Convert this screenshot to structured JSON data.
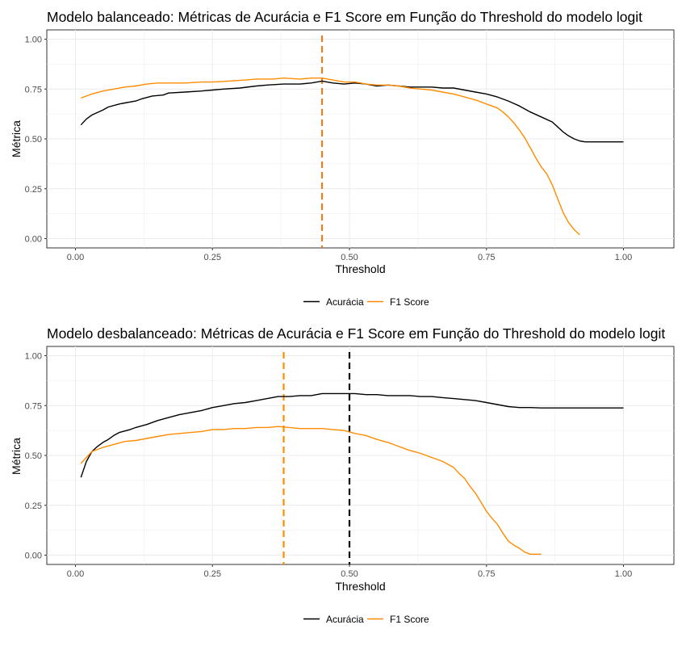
{
  "chart_data": [
    {
      "type": "line",
      "title": "Modelo balanceado: Métricas de Acurácia e F1 Score em Função do Threshold do modelo logit",
      "xlabel": "Threshold",
      "ylabel": "Métrica",
      "xlim": [
        0,
        1
      ],
      "ylim": [
        0,
        1
      ],
      "x_ticks": [
        "0.00",
        "0.25",
        "0.50",
        "0.75",
        "1.00"
      ],
      "y_ticks": [
        "0.00",
        "0.25",
        "0.50",
        "0.75",
        "1.00"
      ],
      "grid": true,
      "legend_position": "bottom",
      "series": [
        {
          "name": "Acurácia",
          "color": "#000000",
          "points": [
            [
              0.01,
              0.57
            ],
            [
              0.02,
              0.6
            ],
            [
              0.03,
              0.62
            ],
            [
              0.05,
              0.645
            ],
            [
              0.06,
              0.66
            ],
            [
              0.08,
              0.675
            ],
            [
              0.09,
              0.68
            ],
            [
              0.11,
              0.69
            ],
            [
              0.12,
              0.7
            ],
            [
              0.14,
              0.715
            ],
            [
              0.16,
              0.72
            ],
            [
              0.17,
              0.73
            ],
            [
              0.2,
              0.735
            ],
            [
              0.23,
              0.74
            ],
            [
              0.25,
              0.745
            ],
            [
              0.27,
              0.75
            ],
            [
              0.3,
              0.755
            ],
            [
              0.33,
              0.765
            ],
            [
              0.35,
              0.77
            ],
            [
              0.38,
              0.775
            ],
            [
              0.41,
              0.775
            ],
            [
              0.43,
              0.78
            ],
            [
              0.45,
              0.79
            ],
            [
              0.47,
              0.78
            ],
            [
              0.49,
              0.775
            ],
            [
              0.51,
              0.78
            ],
            [
              0.53,
              0.775
            ],
            [
              0.55,
              0.765
            ],
            [
              0.57,
              0.77
            ],
            [
              0.59,
              0.765
            ],
            [
              0.61,
              0.76
            ],
            [
              0.63,
              0.76
            ],
            [
              0.65,
              0.76
            ],
            [
              0.67,
              0.755
            ],
            [
              0.69,
              0.755
            ],
            [
              0.71,
              0.745
            ],
            [
              0.73,
              0.735
            ],
            [
              0.75,
              0.725
            ],
            [
              0.77,
              0.71
            ],
            [
              0.79,
              0.69
            ],
            [
              0.81,
              0.665
            ],
            [
              0.83,
              0.635
            ],
            [
              0.85,
              0.61
            ],
            [
              0.87,
              0.585
            ],
            [
              0.88,
              0.56
            ],
            [
              0.89,
              0.535
            ],
            [
              0.9,
              0.515
            ],
            [
              0.91,
              0.5
            ],
            [
              0.92,
              0.49
            ],
            [
              0.93,
              0.485
            ],
            [
              0.95,
              0.485
            ],
            [
              1.0,
              0.485
            ]
          ]
        },
        {
          "name": "F1 Score",
          "color": "#ff8c00",
          "points": [
            [
              0.01,
              0.705
            ],
            [
              0.03,
              0.725
            ],
            [
              0.05,
              0.74
            ],
            [
              0.07,
              0.75
            ],
            [
              0.09,
              0.76
            ],
            [
              0.11,
              0.765
            ],
            [
              0.13,
              0.775
            ],
            [
              0.15,
              0.78
            ],
            [
              0.17,
              0.78
            ],
            [
              0.2,
              0.78
            ],
            [
              0.23,
              0.785
            ],
            [
              0.25,
              0.785
            ],
            [
              0.28,
              0.79
            ],
            [
              0.31,
              0.795
            ],
            [
              0.33,
              0.8
            ],
            [
              0.36,
              0.8
            ],
            [
              0.38,
              0.805
            ],
            [
              0.41,
              0.8
            ],
            [
              0.43,
              0.805
            ],
            [
              0.45,
              0.805
            ],
            [
              0.47,
              0.795
            ],
            [
              0.49,
              0.785
            ],
            [
              0.51,
              0.785
            ],
            [
              0.53,
              0.775
            ],
            [
              0.55,
              0.77
            ],
            [
              0.57,
              0.77
            ],
            [
              0.59,
              0.765
            ],
            [
              0.61,
              0.755
            ],
            [
              0.63,
              0.75
            ],
            [
              0.65,
              0.745
            ],
            [
              0.67,
              0.735
            ],
            [
              0.69,
              0.725
            ],
            [
              0.71,
              0.71
            ],
            [
              0.73,
              0.695
            ],
            [
              0.75,
              0.675
            ],
            [
              0.77,
              0.655
            ],
            [
              0.78,
              0.635
            ],
            [
              0.79,
              0.61
            ],
            [
              0.8,
              0.58
            ],
            [
              0.81,
              0.545
            ],
            [
              0.82,
              0.505
            ],
            [
              0.83,
              0.455
            ],
            [
              0.84,
              0.405
            ],
            [
              0.85,
              0.36
            ],
            [
              0.86,
              0.325
            ],
            [
              0.87,
              0.27
            ],
            [
              0.88,
              0.2
            ],
            [
              0.89,
              0.13
            ],
            [
              0.9,
              0.08
            ],
            [
              0.91,
              0.045
            ],
            [
              0.92,
              0.02
            ]
          ]
        }
      ],
      "vlines": [
        {
          "x": 0.45,
          "color": "#e67e22",
          "dash": true
        }
      ]
    },
    {
      "type": "line",
      "title": "Modelo desbalanceado: Métricas de Acurácia e F1 Score em Função do Threshold do modelo logit",
      "xlabel": "Threshold",
      "ylabel": "Métrica",
      "xlim": [
        0,
        1
      ],
      "ylim": [
        0,
        1
      ],
      "x_ticks": [
        "0.00",
        "0.25",
        "0.50",
        "0.75",
        "1.00"
      ],
      "y_ticks": [
        "0.00",
        "0.25",
        "0.50",
        "0.75",
        "1.00"
      ],
      "grid": true,
      "legend_position": "bottom",
      "series": [
        {
          "name": "Acurácia",
          "color": "#000000",
          "points": [
            [
              0.01,
              0.39
            ],
            [
              0.02,
              0.47
            ],
            [
              0.03,
              0.52
            ],
            [
              0.04,
              0.545
            ],
            [
              0.05,
              0.565
            ],
            [
              0.06,
              0.58
            ],
            [
              0.07,
              0.6
            ],
            [
              0.08,
              0.615
            ],
            [
              0.1,
              0.63
            ],
            [
              0.11,
              0.64
            ],
            [
              0.13,
              0.655
            ],
            [
              0.15,
              0.675
            ],
            [
              0.17,
              0.69
            ],
            [
              0.19,
              0.705
            ],
            [
              0.21,
              0.715
            ],
            [
              0.23,
              0.725
            ],
            [
              0.25,
              0.74
            ],
            [
              0.27,
              0.75
            ],
            [
              0.29,
              0.76
            ],
            [
              0.31,
              0.765
            ],
            [
              0.33,
              0.775
            ],
            [
              0.35,
              0.785
            ],
            [
              0.37,
              0.795
            ],
            [
              0.39,
              0.795
            ],
            [
              0.41,
              0.8
            ],
            [
              0.43,
              0.8
            ],
            [
              0.45,
              0.81
            ],
            [
              0.47,
              0.81
            ],
            [
              0.49,
              0.81
            ],
            [
              0.51,
              0.81
            ],
            [
              0.53,
              0.805
            ],
            [
              0.55,
              0.805
            ],
            [
              0.57,
              0.8
            ],
            [
              0.59,
              0.8
            ],
            [
              0.61,
              0.8
            ],
            [
              0.63,
              0.795
            ],
            [
              0.65,
              0.795
            ],
            [
              0.67,
              0.79
            ],
            [
              0.69,
              0.785
            ],
            [
              0.71,
              0.78
            ],
            [
              0.73,
              0.775
            ],
            [
              0.75,
              0.765
            ],
            [
              0.77,
              0.755
            ],
            [
              0.79,
              0.745
            ],
            [
              0.81,
              0.74
            ],
            [
              0.83,
              0.74
            ],
            [
              0.85,
              0.738
            ],
            [
              1.0,
              0.738
            ]
          ]
        },
        {
          "name": "F1 Score",
          "color": "#ff8c00",
          "points": [
            [
              0.01,
              0.46
            ],
            [
              0.02,
              0.49
            ],
            [
              0.03,
              0.52
            ],
            [
              0.05,
              0.54
            ],
            [
              0.07,
              0.555
            ],
            [
              0.09,
              0.57
            ],
            [
              0.11,
              0.575
            ],
            [
              0.13,
              0.585
            ],
            [
              0.15,
              0.595
            ],
            [
              0.17,
              0.605
            ],
            [
              0.19,
              0.61
            ],
            [
              0.21,
              0.615
            ],
            [
              0.23,
              0.62
            ],
            [
              0.25,
              0.63
            ],
            [
              0.27,
              0.63
            ],
            [
              0.29,
              0.635
            ],
            [
              0.31,
              0.635
            ],
            [
              0.33,
              0.64
            ],
            [
              0.35,
              0.64
            ],
            [
              0.37,
              0.645
            ],
            [
              0.39,
              0.64
            ],
            [
              0.41,
              0.635
            ],
            [
              0.43,
              0.635
            ],
            [
              0.45,
              0.635
            ],
            [
              0.47,
              0.63
            ],
            [
              0.49,
              0.625
            ],
            [
              0.51,
              0.61
            ],
            [
              0.53,
              0.6
            ],
            [
              0.55,
              0.58
            ],
            [
              0.57,
              0.565
            ],
            [
              0.59,
              0.545
            ],
            [
              0.61,
              0.525
            ],
            [
              0.63,
              0.51
            ],
            [
              0.65,
              0.49
            ],
            [
              0.67,
              0.47
            ],
            [
              0.69,
              0.44
            ],
            [
              0.7,
              0.41
            ],
            [
              0.71,
              0.385
            ],
            [
              0.72,
              0.345
            ],
            [
              0.73,
              0.31
            ],
            [
              0.74,
              0.265
            ],
            [
              0.75,
              0.22
            ],
            [
              0.76,
              0.185
            ],
            [
              0.77,
              0.155
            ],
            [
              0.78,
              0.11
            ],
            [
              0.79,
              0.07
            ],
            [
              0.8,
              0.05
            ],
            [
              0.81,
              0.035
            ],
            [
              0.82,
              0.015
            ],
            [
              0.83,
              0.005
            ],
            [
              0.85,
              0.005
            ]
          ]
        }
      ],
      "vlines": [
        {
          "x": 0.38,
          "color": "#ff8c00",
          "dash": true
        },
        {
          "x": 0.5,
          "color": "#000000",
          "dash": true
        }
      ]
    }
  ]
}
